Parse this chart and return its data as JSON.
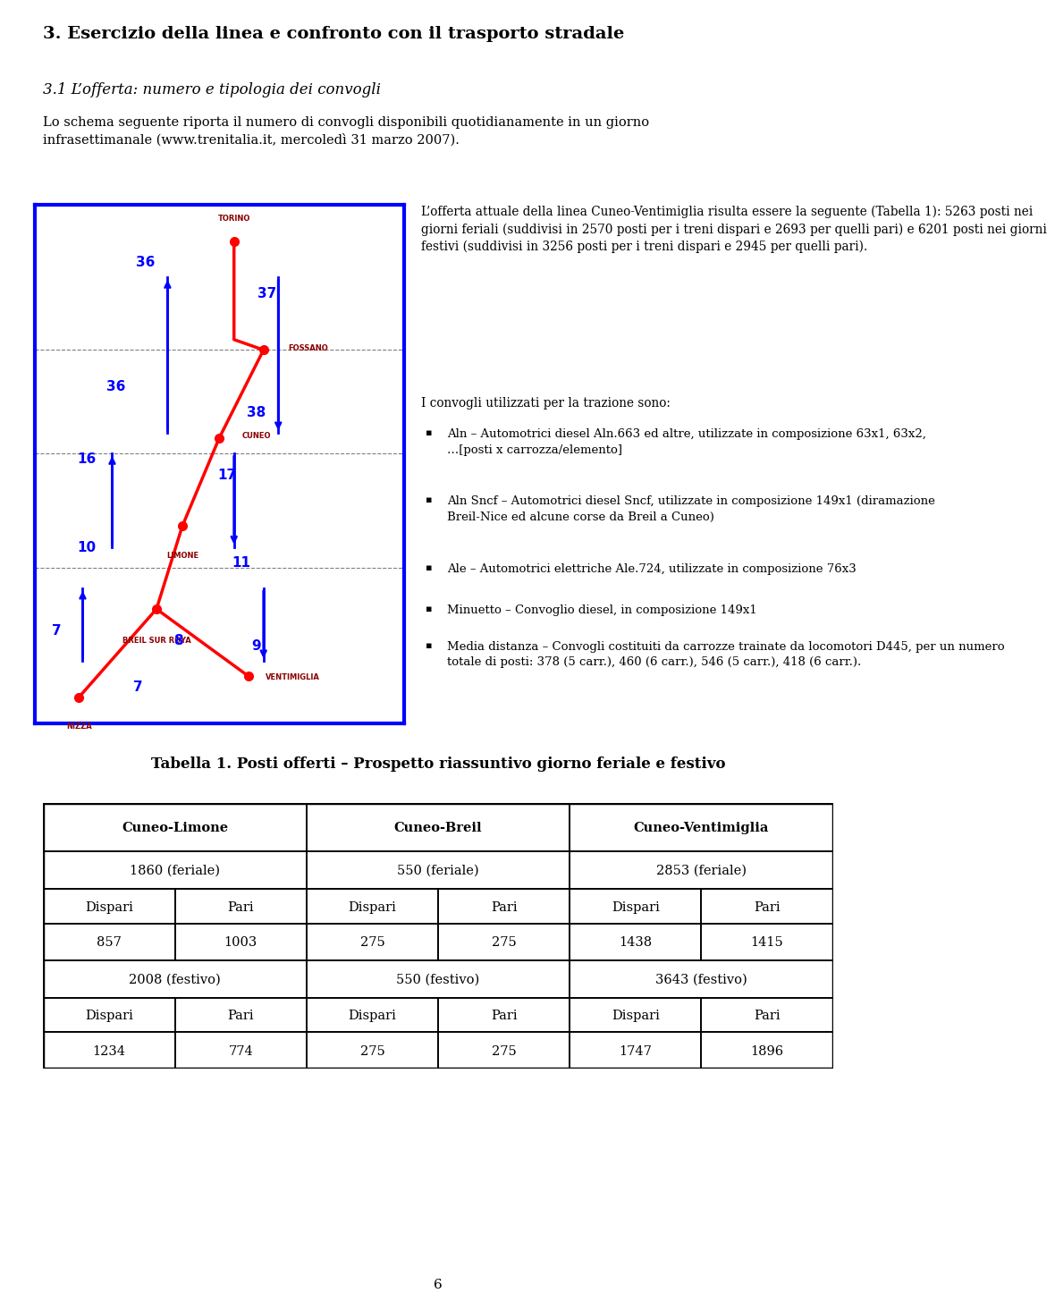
{
  "title": "3. Esercizio della linea e confronto con il trasporto stradale",
  "subtitle": "3.1 L’offerta: numero e tipologia dei convogli",
  "intro_line1": "Lo schema seguente riporta il numero di convogli disponibili quotidianamente in un giorno",
  "intro_line2": "infrasettimanale (www.trenitalia.it, mercoledì 31 marzo 2007).",
  "right_para1_lines": [
    "L’offerta attuale della linea Cuneo-Ventimiglia risulta essere la seguente (Tabella 1): 5263 posti nei",
    "giorni feriali (suddivisi in 2570 posti per i treni dispari e 2693 per quelli pari) e 6201 posti nei giorni",
    "festivi (suddivisi in 3256 posti per i treni dispari e 2945 per quelli pari)."
  ],
  "right_para2": "I convogli utilizzati per la trazione sono:",
  "bullets": [
    "Aln – Automotrici diesel Aln.663 ed altre, utilizzate in composizione 63x1, 63x2, …[posti x carrozza/elemento]",
    "Aln Sncf – Automotrici diesel Sncf, utilizzate in composizione 149x1 (diramazione Breil-Nice ed alcune corse da Breil a Cuneo)",
    "Ale – Automotrici elettriche Ale.724, utilizzate in composizione 76x3",
    "Minuetto – Convoglio diesel, in composizione 149x1",
    "Media distanza – Convogli costituiti da carrozze trainate da locomotori D445, per un numero totale di posti: 378 (5 carr.), 460 (6 carr.), 546 (5 carr.), 418 (6 carr.)."
  ],
  "table_title": "Tabella 1. Posti offerti – Prospetto riassuntivo giorno feriale e festivo",
  "table_col_headers": [
    "Cuneo-Limone",
    "Cuneo-Breil",
    "Cuneo-Ventimiglia"
  ],
  "table_feriale": [
    "1860 (feriale)",
    "550 (feriale)",
    "2853 (feriale)"
  ],
  "table_dp_header": [
    "Dispari",
    "Pari",
    "Dispari",
    "Pari",
    "Dispari",
    "Pari"
  ],
  "table_feriale_values": [
    "857",
    "1003",
    "275",
    "275",
    "1438",
    "1415"
  ],
  "table_festivo": [
    "2008 (festivo)",
    "550 (festivo)",
    "3643 (festivo)"
  ],
  "table_dp_header2": [
    "Dispari",
    "Pari",
    "Dispari",
    "Pari",
    "Dispari",
    "Pari"
  ],
  "table_festivo_values": [
    "1234",
    "774",
    "275",
    "275",
    "1747",
    "1896"
  ],
  "page_number": "6"
}
